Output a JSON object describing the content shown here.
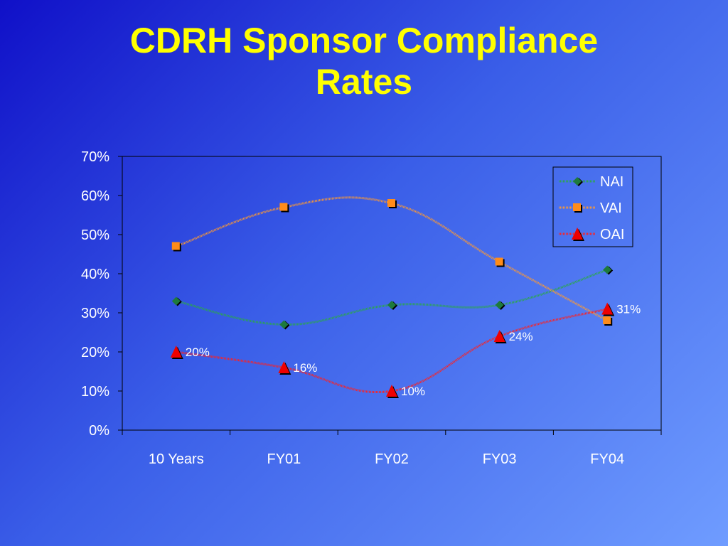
{
  "slide": {
    "title_line1": "CDRH Sponsor Compliance",
    "title_line2": "Rates"
  },
  "chart_data": {
    "type": "line",
    "title": "CDRH Sponsor Compliance Rates",
    "categories": [
      "10 Years",
      "FY01",
      "FY02",
      "FY03",
      "FY04"
    ],
    "ylim": [
      0,
      70
    ],
    "yticks": [
      "0%",
      "10%",
      "20%",
      "30%",
      "40%",
      "50%",
      "60%",
      "70%"
    ],
    "grid": false,
    "smooth": true,
    "legend_position": "top-right",
    "series": [
      {
        "name": "NAI",
        "values": [
          33,
          27,
          32,
          32,
          41
        ],
        "color": "#2aa84a",
        "marker": "diamond",
        "marker_color": "#1e7a3c",
        "show_labels": false
      },
      {
        "name": "VAI",
        "values": [
          47,
          57,
          58,
          43,
          28
        ],
        "color": "#ff9a30",
        "marker": "square",
        "marker_color": "#ff8c1a",
        "show_labels": false
      },
      {
        "name": "OAI",
        "values": [
          20,
          16,
          10,
          24,
          31
        ],
        "color": "#ff2020",
        "marker": "triangle",
        "marker_color": "#ee0000",
        "show_labels": true,
        "labels": [
          "20%",
          "16%",
          "10%",
          "24%",
          "31%"
        ]
      }
    ]
  }
}
